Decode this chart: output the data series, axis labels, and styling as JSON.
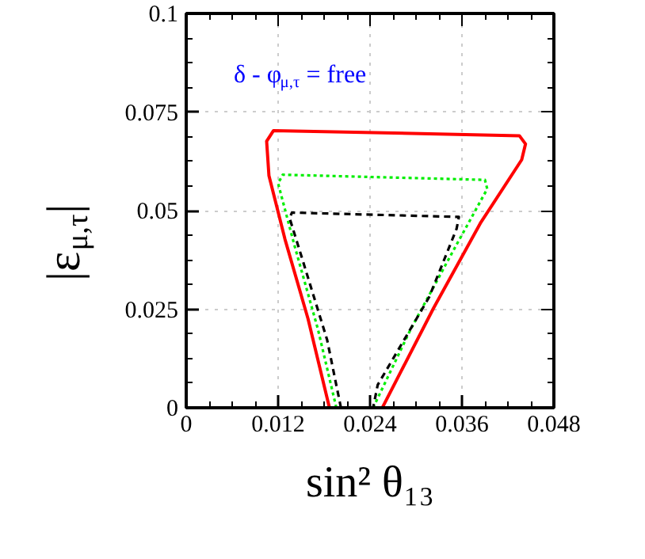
{
  "chart_data": {
    "type": "line",
    "xlabel": "sin² θ₁₃",
    "ylabel": "|ε$_{μ,τ}$|",
    "annotations": [
      "δ - φ$_{μ,τ}$ = free"
    ],
    "xlim": [
      0,
      0.048
    ],
    "ylim": [
      0,
      0.1
    ],
    "xticks": [
      0,
      0.012,
      0.024,
      0.036,
      0.048
    ],
    "yticks": [
      0,
      0.025,
      0.05,
      0.075,
      0.1
    ],
    "grid": true,
    "series": [
      {
        "color": "#ff0000",
        "line_style": "solid",
        "x": [
          0.0187,
          0.0159,
          0.0129,
          0.0108,
          0.0105,
          0.0114,
          0.0435,
          0.0443,
          0.0438,
          0.0384,
          0.0323,
          0.0256
        ],
        "values": [
          0,
          0.0226,
          0.0427,
          0.0589,
          0.0676,
          0.0703,
          0.069,
          0.0669,
          0.0629,
          0.0468,
          0.0253,
          0
        ]
      },
      {
        "color": "#00ee00",
        "line_style": "dotted",
        "x": [
          0.0196,
          0.0172,
          0.0141,
          0.012,
          0.0126,
          0.039,
          0.0393,
          0.0353,
          0.0293,
          0.0244
        ],
        "values": [
          0,
          0.0199,
          0.0414,
          0.0569,
          0.0591,
          0.0578,
          0.0555,
          0.0414,
          0.0199,
          0
        ]
      },
      {
        "color": "#000000",
        "line_style": "dashed",
        "x": [
          0.0202,
          0.0184,
          0.015,
          0.0135,
          0.0138,
          0.0356,
          0.0353,
          0.0317,
          0.025,
          0.0244
        ],
        "values": [
          0,
          0.0172,
          0.0387,
          0.0481,
          0.0495,
          0.0484,
          0.0454,
          0.028,
          0.0058,
          0
        ]
      }
    ]
  }
}
